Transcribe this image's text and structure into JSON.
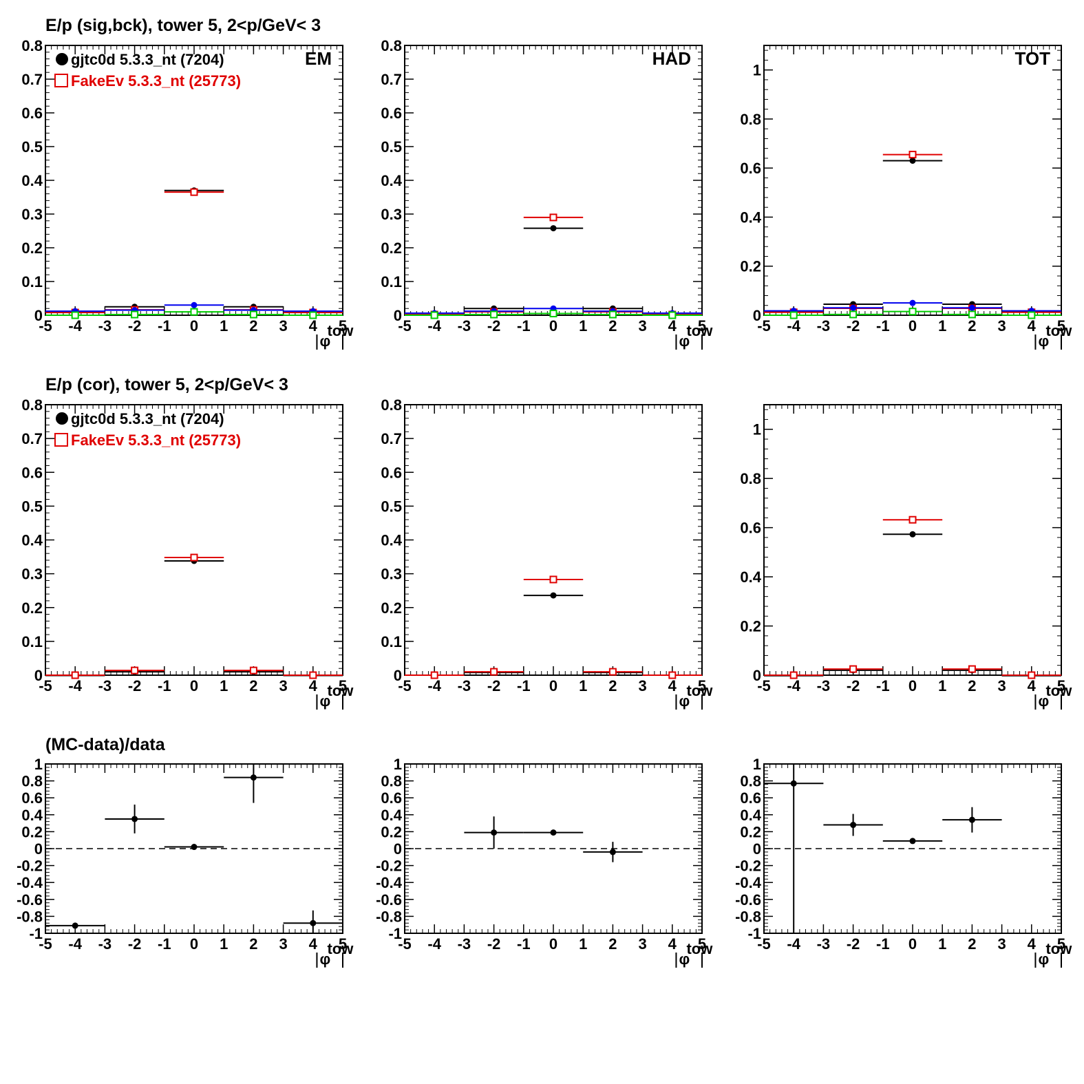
{
  "figure": {
    "row_titles": [
      "E/p (sig,bck), tower 5,  2<p/GeV< 3",
      "E/p (cor), tower 5,  2<p/GeV< 3",
      "(MC-data)/data"
    ],
    "x_axis_label": "|φ tow|",
    "legend": [
      {
        "label": "gjtc0d 5.3.3_nt (7204)",
        "color": "#000000",
        "marker": "filled-circle"
      },
      {
        "label": "FakeEv 5.3.3_nt (25773)",
        "color": "#e00000",
        "marker": "open-square"
      }
    ],
    "colors": {
      "data": "#000000",
      "mc": "#e00000",
      "blue": "#0000ee",
      "green": "#00cc00"
    }
  },
  "chart_data": [
    {
      "type": "scatter",
      "row": 0,
      "col": 0,
      "tag": "EM",
      "title": "E/p (sig,bck), tower 5,  2<p/GeV< 3",
      "xlabel": "|φ tow|",
      "ylabel": "",
      "xlim": [
        -5,
        5
      ],
      "ylim": [
        0,
        0.8
      ],
      "grid": false,
      "x_ticks": [
        -5,
        -4,
        -3,
        -2,
        -1,
        0,
        1,
        2,
        3,
        4,
        5
      ],
      "y_ticks": [
        0,
        0.1,
        0.2,
        0.3,
        0.4,
        0.5,
        0.6,
        0.7,
        0.8
      ],
      "y_tick_labels": [
        "0",
        "0.1",
        "0.2",
        "0.3",
        "0.4",
        "0.5",
        "0.6",
        "0.7",
        "0.8"
      ],
      "legend_position": "top-left",
      "x": [
        -4,
        -2,
        0,
        2,
        4
      ],
      "xerr": 1,
      "series": [
        {
          "name": "gjtc0d 5.3.3_nt (7204)",
          "color": "#000000",
          "marker": "filled-circle",
          "values": [
            0.01,
            0.025,
            0.37,
            0.025,
            0.01
          ]
        },
        {
          "name": "FakeEv 5.3.3_nt (25773)",
          "color": "#e00000",
          "marker": "open-square",
          "values": [
            0.008,
            0.016,
            0.365,
            0.016,
            0.008
          ]
        },
        {
          "color": "#0000ee",
          "marker": "filled-circle",
          "values": [
            0.012,
            0.015,
            0.03,
            0.015,
            0.012
          ]
        },
        {
          "color": "#00cc00",
          "marker": "open-square",
          "values": [
            0.0,
            0.002,
            0.01,
            0.002,
            0.0
          ]
        }
      ]
    },
    {
      "type": "scatter",
      "row": 0,
      "col": 1,
      "tag": "HAD",
      "xlabel": "|φ tow|",
      "ylabel": "",
      "xlim": [
        -5,
        5
      ],
      "ylim": [
        0,
        0.8
      ],
      "grid": false,
      "x_ticks": [
        -5,
        -4,
        -3,
        -2,
        -1,
        0,
        1,
        2,
        3,
        4,
        5
      ],
      "y_ticks": [
        0,
        0.1,
        0.2,
        0.3,
        0.4,
        0.5,
        0.6,
        0.7,
        0.8
      ],
      "y_tick_labels": [
        "0",
        "0.1",
        "0.2",
        "0.3",
        "0.4",
        "0.5",
        "0.6",
        "0.7",
        "0.8"
      ],
      "x": [
        -4,
        -2,
        0,
        2,
        4
      ],
      "xerr": 1,
      "series": [
        {
          "name": "gjtc0d 5.3.3_nt (7204)",
          "color": "#000000",
          "marker": "filled-circle",
          "values": [
            0.004,
            0.02,
            0.258,
            0.02,
            0.004
          ]
        },
        {
          "name": "FakeEv 5.3.3_nt (25773)",
          "color": "#e00000",
          "marker": "open-square",
          "values": [
            0.002,
            0.01,
            0.29,
            0.01,
            0.002
          ]
        },
        {
          "color": "#0000ee",
          "marker": "filled-circle",
          "values": [
            0.006,
            0.012,
            0.02,
            0.012,
            0.006
          ]
        },
        {
          "color": "#00cc00",
          "marker": "open-square",
          "values": [
            0.0,
            0.002,
            0.005,
            0.002,
            0.0
          ]
        }
      ]
    },
    {
      "type": "scatter",
      "row": 0,
      "col": 2,
      "tag": "TOT",
      "xlabel": "|φ tow|",
      "ylabel": "",
      "xlim": [
        -5,
        5
      ],
      "ylim": [
        0,
        1.1
      ],
      "grid": false,
      "x_ticks": [
        -5,
        -4,
        -3,
        -2,
        -1,
        0,
        1,
        2,
        3,
        4,
        5
      ],
      "y_ticks": [
        0,
        0.2,
        0.4,
        0.6,
        0.8,
        1
      ],
      "y_tick_labels": [
        "0",
        "0.2",
        "0.4",
        "0.6",
        "0.8",
        "1"
      ],
      "x": [
        -4,
        -2,
        0,
        2,
        4
      ],
      "xerr": 1,
      "series": [
        {
          "name": "gjtc0d 5.3.3_nt (7204)",
          "color": "#000000",
          "marker": "filled-circle",
          "values": [
            0.015,
            0.045,
            0.63,
            0.045,
            0.015
          ]
        },
        {
          "name": "FakeEv 5.3.3_nt (25773)",
          "color": "#e00000",
          "marker": "open-square",
          "values": [
            0.012,
            0.028,
            0.655,
            0.028,
            0.012
          ]
        },
        {
          "color": "#0000ee",
          "marker": "filled-circle",
          "values": [
            0.018,
            0.03,
            0.05,
            0.03,
            0.018
          ]
        },
        {
          "color": "#00cc00",
          "marker": "open-square",
          "values": [
            0.0,
            0.003,
            0.015,
            0.003,
            0.0
          ]
        }
      ]
    },
    {
      "type": "scatter",
      "row": 1,
      "col": 0,
      "title": "E/p (cor), tower 5,  2<p/GeV< 3",
      "xlabel": "|φ tow|",
      "ylabel": "",
      "xlim": [
        -5,
        5
      ],
      "ylim": [
        0,
        0.8
      ],
      "grid": false,
      "x_ticks": [
        -5,
        -4,
        -3,
        -2,
        -1,
        0,
        1,
        2,
        3,
        4,
        5
      ],
      "y_ticks": [
        0,
        0.1,
        0.2,
        0.3,
        0.4,
        0.5,
        0.6,
        0.7,
        0.8
      ],
      "y_tick_labels": [
        "0",
        "0.1",
        "0.2",
        "0.3",
        "0.4",
        "0.5",
        "0.6",
        "0.7",
        "0.8"
      ],
      "legend_position": "top-left",
      "x": [
        -4,
        -2,
        0,
        2,
        4
      ],
      "xerr": 1,
      "series": [
        {
          "name": "gjtc0d 5.3.3_nt (7204)",
          "color": "#000000",
          "marker": "filled-circle",
          "values": [
            -0.001,
            0.01,
            0.338,
            0.01,
            -0.001
          ]
        },
        {
          "name": "FakeEv 5.3.3_nt (25773)",
          "color": "#e00000",
          "marker": "open-square",
          "values": [
            0.0,
            0.014,
            0.348,
            0.014,
            0.0
          ]
        }
      ]
    },
    {
      "type": "scatter",
      "row": 1,
      "col": 1,
      "xlabel": "|φ tow|",
      "ylabel": "",
      "xlim": [
        -5,
        5
      ],
      "ylim": [
        0,
        0.8
      ],
      "grid": false,
      "x_ticks": [
        -5,
        -4,
        -3,
        -2,
        -1,
        0,
        1,
        2,
        3,
        4,
        5
      ],
      "y_ticks": [
        0,
        0.1,
        0.2,
        0.3,
        0.4,
        0.5,
        0.6,
        0.7,
        0.8
      ],
      "y_tick_labels": [
        "0",
        "0.1",
        "0.2",
        "0.3",
        "0.4",
        "0.5",
        "0.6",
        "0.7",
        "0.8"
      ],
      "x": [
        -4,
        -2,
        0,
        2,
        4
      ],
      "xerr": 1,
      "series": [
        {
          "name": "gjtc0d 5.3.3_nt (7204)",
          "color": "#000000",
          "marker": "filled-circle",
          "values": [
            0.0,
            0.008,
            0.236,
            0.008,
            0.0
          ]
        },
        {
          "name": "FakeEv 5.3.3_nt (25773)",
          "color": "#e00000",
          "marker": "open-square",
          "values": [
            0.0,
            0.01,
            0.283,
            0.01,
            0.0
          ]
        }
      ]
    },
    {
      "type": "scatter",
      "row": 1,
      "col": 2,
      "xlabel": "|φ tow|",
      "ylabel": "",
      "xlim": [
        -5,
        5
      ],
      "ylim": [
        0,
        1.1
      ],
      "grid": false,
      "x_ticks": [
        -5,
        -4,
        -3,
        -2,
        -1,
        0,
        1,
        2,
        3,
        4,
        5
      ],
      "y_ticks": [
        0,
        0.2,
        0.4,
        0.6,
        0.8,
        1
      ],
      "y_tick_labels": [
        "0",
        "0.2",
        "0.4",
        "0.6",
        "0.8",
        "1"
      ],
      "x": [
        -4,
        -2,
        0,
        2,
        4
      ],
      "xerr": 1,
      "series": [
        {
          "name": "gjtc0d 5.3.3_nt (7204)",
          "color": "#000000",
          "marker": "filled-circle",
          "values": [
            -0.002,
            0.02,
            0.573,
            0.02,
            -0.002
          ]
        },
        {
          "name": "FakeEv 5.3.3_nt (25773)",
          "color": "#e00000",
          "marker": "open-square",
          "values": [
            0.0,
            0.025,
            0.632,
            0.025,
            0.0
          ]
        }
      ]
    },
    {
      "type": "scatter",
      "row": 2,
      "col": 0,
      "title": "(MC-data)/data",
      "xlabel": "|φ tow|",
      "ylabel": "",
      "xlim": [
        -5,
        5
      ],
      "ylim": [
        -1,
        1
      ],
      "grid": false,
      "x_ticks": [
        -5,
        -4,
        -3,
        -2,
        -1,
        0,
        1,
        2,
        3,
        4,
        5
      ],
      "y_ticks": [
        -1,
        -0.8,
        -0.6,
        -0.4,
        -0.2,
        0,
        0.2,
        0.4,
        0.6,
        0.8,
        1
      ],
      "y_tick_labels": [
        "-1",
        "-0.8",
        "-0.6",
        "-0.4",
        "-0.2",
        "0",
        "0.2",
        "0.4",
        "0.6",
        "0.8",
        "1"
      ],
      "reference_line": 0,
      "x": [
        -4,
        -2,
        0,
        2,
        4
      ],
      "xerr": 1,
      "series": [
        {
          "color": "#000000",
          "marker": "filled-circle",
          "values": [
            -0.91,
            0.35,
            0.02,
            0.84,
            -0.88
          ],
          "yerr": [
            0.02,
            0.17,
            0.01,
            0.3,
            0.15
          ]
        }
      ]
    },
    {
      "type": "scatter",
      "row": 2,
      "col": 1,
      "xlabel": "|φ tow|",
      "ylabel": "",
      "xlim": [
        -5,
        5
      ],
      "ylim": [
        -1,
        1
      ],
      "grid": false,
      "x_ticks": [
        -5,
        -4,
        -3,
        -2,
        -1,
        0,
        1,
        2,
        3,
        4,
        5
      ],
      "y_ticks": [
        -1,
        -0.8,
        -0.6,
        -0.4,
        -0.2,
        0,
        0.2,
        0.4,
        0.6,
        0.8,
        1
      ],
      "y_tick_labels": [
        "-1",
        "-0.8",
        "-0.6",
        "-0.4",
        "-0.2",
        "0",
        "0.2",
        "0.4",
        "0.6",
        "0.8",
        "1"
      ],
      "reference_line": 0,
      "x": [
        -2,
        0,
        2
      ],
      "xerr": [
        1,
        1,
        1
      ],
      "series": [
        {
          "color": "#000000",
          "marker": "filled-circle",
          "values": [
            0.19,
            0.19,
            -0.04
          ],
          "yerr": [
            0.19,
            0.01,
            0.12
          ],
          "xerr": [
            1,
            1,
            1
          ]
        }
      ]
    },
    {
      "type": "scatter",
      "row": 2,
      "col": 2,
      "xlabel": "|φ tow|",
      "ylabel": "",
      "xlim": [
        -5,
        5
      ],
      "ylim": [
        -1,
        1
      ],
      "grid": false,
      "x_ticks": [
        -5,
        -4,
        -3,
        -2,
        -1,
        0,
        1,
        2,
        3,
        4,
        5
      ],
      "y_ticks": [
        -1,
        -0.8,
        -0.6,
        -0.4,
        -0.2,
        0,
        0.2,
        0.4,
        0.6,
        0.8,
        1
      ],
      "y_tick_labels": [
        "-1",
        "-0.8",
        "-0.6",
        "-0.4",
        "-0.2",
        "0",
        "0.2",
        "0.4",
        "0.6",
        "0.8",
        "1"
      ],
      "reference_line": 0,
      "x": [
        -4,
        -2,
        0,
        2
      ],
      "xerr": [
        1,
        1,
        1,
        1
      ],
      "series": [
        {
          "color": "#000000",
          "marker": "filled-circle",
          "values": [
            0.77,
            0.28,
            0.09,
            0.34
          ],
          "yerr": [
            1.8,
            0.13,
            0.01,
            0.15
          ],
          "xerr": [
            1,
            1,
            1,
            1
          ]
        }
      ]
    }
  ]
}
